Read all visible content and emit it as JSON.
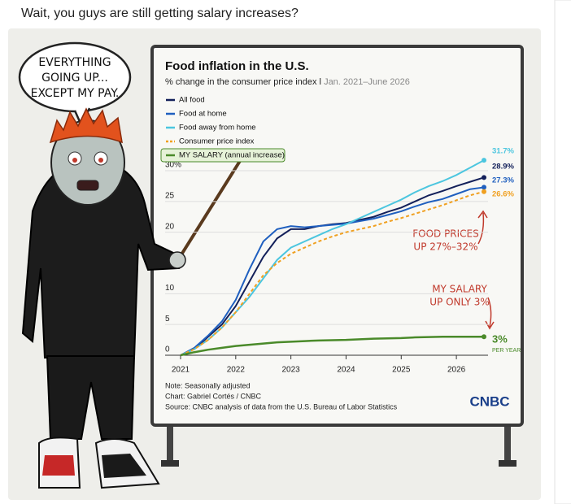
{
  "post": {
    "caption": "Wait, you guys are still getting salary increases?",
    "speech_bubble": [
      "EVERYTHING",
      "GOING UP...",
      "EXCEPT MY PAY."
    ]
  },
  "chart_data": {
    "type": "line",
    "title": "Food inflation in the U.S.",
    "subtitle": "% change in the consumer price index l",
    "subtitle_period": "Jan. 2021–June 2026",
    "x": [
      2021,
      2021.25,
      2021.5,
      2021.75,
      2022,
      2022.25,
      2022.5,
      2022.75,
      2023,
      2023.25,
      2023.5,
      2023.75,
      2024,
      2024.25,
      2024.5,
      2024.75,
      2025,
      2025.25,
      2025.5,
      2025.75,
      2026,
      2026.25,
      2026.5
    ],
    "xlim": [
      2021,
      2026.5
    ],
    "xticks": [
      2021,
      2022,
      2023,
      2024,
      2025,
      2026
    ],
    "ylim": [
      0,
      30
    ],
    "yticks": [
      0,
      5,
      10,
      20,
      25,
      {
        "value": 30,
        "label": "30%"
      }
    ],
    "grid": true,
    "series": [
      {
        "name": "All food",
        "color": "#13205a",
        "values": [
          0,
          1,
          3,
          5,
          8,
          12,
          16,
          19,
          20.5,
          20.5,
          21,
          21.3,
          21.5,
          22,
          22.5,
          23.3,
          24,
          25,
          26,
          26.7,
          27.5,
          28.2,
          28.9
        ],
        "value_labels": [
          null,
          null,
          null,
          null,
          null,
          null,
          null,
          null,
          null,
          null,
          null,
          null,
          null,
          null,
          null,
          null,
          null,
          null,
          null,
          null,
          null,
          null,
          "28.9%"
        ]
      },
      {
        "name": "Food at home",
        "color": "#1f5fbf",
        "values": [
          0,
          1.2,
          3.2,
          5.5,
          9,
          14,
          18.5,
          20.5,
          21,
          20.8,
          21,
          21.2,
          21.4,
          21.8,
          22.2,
          22.8,
          23.4,
          24.2,
          24.9,
          25.4,
          26.2,
          27,
          27.3
        ],
        "value_labels": [
          null,
          null,
          null,
          null,
          null,
          null,
          null,
          null,
          null,
          null,
          null,
          null,
          null,
          null,
          null,
          null,
          null,
          null,
          null,
          null,
          null,
          null,
          "27.3%"
        ]
      },
      {
        "name": "Food away from home",
        "color": "#4cc6df",
        "values": [
          0,
          1,
          2.5,
          4.5,
          7,
          9.5,
          12.5,
          15.5,
          17.5,
          18.5,
          19.5,
          20.5,
          21.3,
          22.3,
          23.3,
          24.3,
          25.3,
          26.5,
          27.5,
          28.3,
          29.3,
          30.5,
          31.7
        ],
        "value_labels": [
          null,
          null,
          null,
          null,
          null,
          null,
          null,
          null,
          null,
          null,
          null,
          null,
          null,
          null,
          null,
          null,
          null,
          null,
          null,
          null,
          null,
          null,
          "31.7%"
        ]
      },
      {
        "name": "Consumer price index",
        "color": "#f0a020",
        "dashed": true,
        "values": [
          0,
          1,
          2.5,
          4.5,
          7,
          10,
          13,
          15,
          16.5,
          17.5,
          18.5,
          19.3,
          20,
          20.5,
          21,
          21.7,
          22.3,
          23,
          23.7,
          24.4,
          25.2,
          26,
          26.6
        ],
        "value_labels": [
          null,
          null,
          null,
          null,
          null,
          null,
          null,
          null,
          null,
          null,
          null,
          null,
          null,
          null,
          null,
          null,
          null,
          null,
          null,
          null,
          null,
          null,
          "26.6%"
        ]
      },
      {
        "name": "MY SALARY (annual increase)",
        "color": "#4a8a2a",
        "highlight": true,
        "values": [
          0,
          0.5,
          0.9,
          1.2,
          1.5,
          1.7,
          1.9,
          2.1,
          2.2,
          2.3,
          2.4,
          2.45,
          2.5,
          2.6,
          2.7,
          2.75,
          2.8,
          2.9,
          2.95,
          3,
          3,
          3,
          3
        ],
        "value_labels": [
          null,
          null,
          null,
          null,
          null,
          null,
          null,
          null,
          null,
          null,
          null,
          null,
          null,
          null,
          null,
          null,
          null,
          null,
          null,
          null,
          null,
          null,
          "3%"
        ],
        "end_note": "PER YEAR"
      }
    ],
    "annotations": [
      [
        "FOOD PRICES",
        "UP 27%–32%"
      ],
      [
        "MY SALARY",
        "UP ONLY 3%"
      ]
    ],
    "notes": [
      "Note: Seasonally adjusted",
      "Chart: Gabriel Cortés / CNBC",
      "Source: CNBC analysis of data from the U.S. Bureau of Labor Statistics"
    ],
    "logo": "CNBC"
  }
}
